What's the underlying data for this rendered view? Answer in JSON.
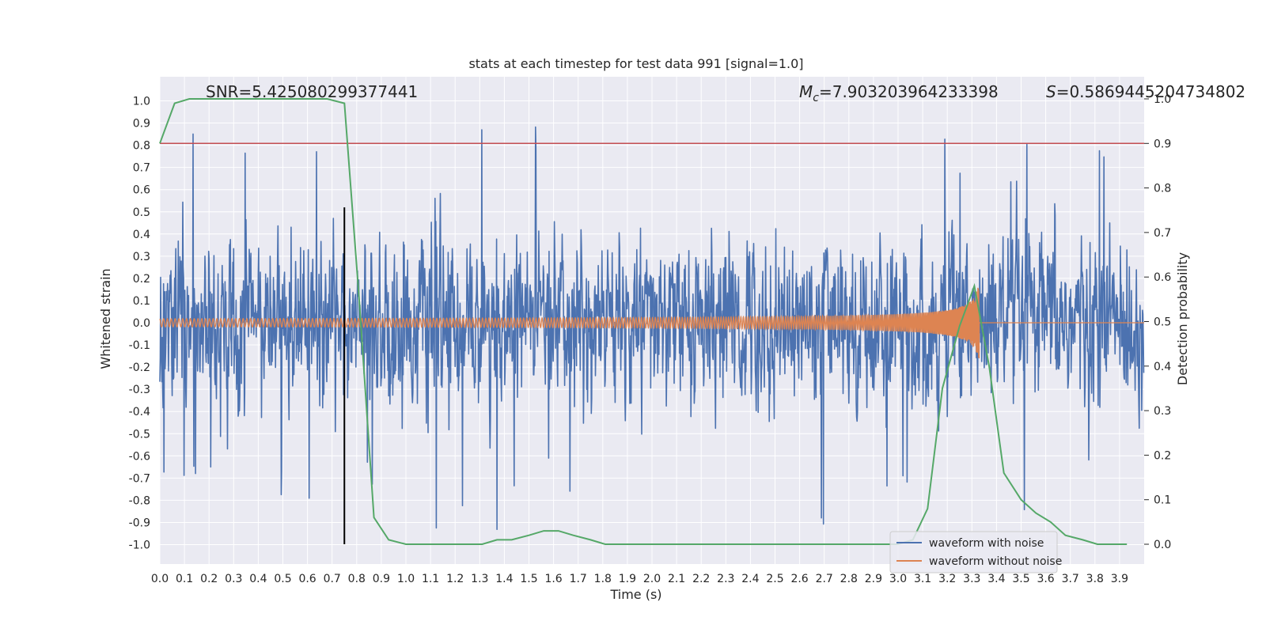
{
  "chart_data": {
    "type": "line",
    "title": "stats at each timestep for test data 991 [signal=1.0]",
    "xlabel": "Time (s)",
    "ylabel": "Whitened strain",
    "y2label": "Detection probability",
    "xlim": [
      0.0,
      4.0
    ],
    "ylim": [
      -1.1,
      1.1
    ],
    "y2lim": [
      -0.05,
      1.0
    ],
    "x_ticks": [
      0.0,
      0.1,
      0.2,
      0.3,
      0.4,
      0.5,
      0.6,
      0.7,
      0.8,
      0.9,
      1.0,
      1.1,
      1.2,
      1.3,
      1.4,
      1.5,
      1.6,
      1.7,
      1.8,
      1.9,
      2.0,
      2.1,
      2.2,
      2.3,
      2.4,
      2.5,
      2.6,
      2.7,
      2.8,
      2.9,
      3.0,
      3.1,
      3.2,
      3.3,
      3.4,
      3.5,
      3.6,
      3.7,
      3.8,
      3.9
    ],
    "y_ticks": [
      1.0,
      0.9,
      0.8,
      0.7,
      0.6,
      0.5,
      0.4,
      0.3,
      0.2,
      0.1,
      0.0,
      -0.1,
      -0.2,
      -0.3,
      -0.4,
      -0.5,
      -0.6,
      -0.7,
      -0.8,
      -0.9,
      -1.0
    ],
    "y2_ticks": [
      0.0,
      0.1,
      0.2,
      0.3,
      0.4,
      0.5,
      0.6,
      0.7,
      0.8,
      0.9,
      1.0
    ],
    "grid": true,
    "legend_placement": "lower-right",
    "annotations": {
      "snr": "SNR=5.425080299377441",
      "mc_symbol": "M",
      "mc_sub": "c",
      "mc_value": "=7.903203964233398",
      "s_symbol": "S",
      "s_value": "=0.5869445204734802"
    },
    "vertical_line_x": 0.75,
    "threshold_line_y2": 0.9,
    "series": [
      {
        "name": "waveform with noise",
        "color": "#4c72b0",
        "description_values": "dense noise, approx range -0.9 to 1.0",
        "seed": 991
      },
      {
        "name": "waveform without noise",
        "color": "#dd8452",
        "chirp": {
          "merger_time": 3.33,
          "amp_start": 0.01,
          "amp_end": 0.18
        }
      },
      {
        "color": "#55a868",
        "axis": "right",
        "x": [
          0.0,
          0.06,
          0.12,
          0.18,
          0.25,
          0.31,
          0.37,
          0.43,
          0.5,
          0.56,
          0.62,
          0.68,
          0.75,
          0.81,
          0.87,
          0.93,
          1.0,
          1.06,
          1.12,
          1.18,
          1.25,
          1.31,
          1.37,
          1.43,
          1.5,
          1.56,
          1.62,
          1.68,
          1.75,
          1.81,
          1.87,
          1.93,
          2.0,
          2.5,
          3.0,
          3.06,
          3.12,
          3.18,
          3.25,
          3.31,
          3.37,
          3.43,
          3.5,
          3.56,
          3.62,
          3.68,
          3.75,
          3.81,
          3.87,
          3.93
        ],
        "values": [
          0.9,
          0.99,
          1.0,
          1.0,
          1.0,
          1.0,
          1.0,
          1.0,
          1.0,
          1.0,
          1.0,
          1.0,
          0.99,
          0.55,
          0.06,
          0.01,
          0.0,
          0.0,
          0.0,
          0.0,
          0.0,
          0.0,
          0.01,
          0.01,
          0.02,
          0.03,
          0.03,
          0.02,
          0.01,
          0.0,
          0.0,
          0.0,
          0.0,
          0.0,
          0.0,
          0.01,
          0.08,
          0.35,
          0.49,
          0.58,
          0.4,
          0.16,
          0.1,
          0.07,
          0.05,
          0.02,
          0.01,
          0.0,
          0.0,
          0.0
        ]
      },
      {
        "color": "#c44e52",
        "axis": "right",
        "hline": 0.9
      }
    ]
  }
}
